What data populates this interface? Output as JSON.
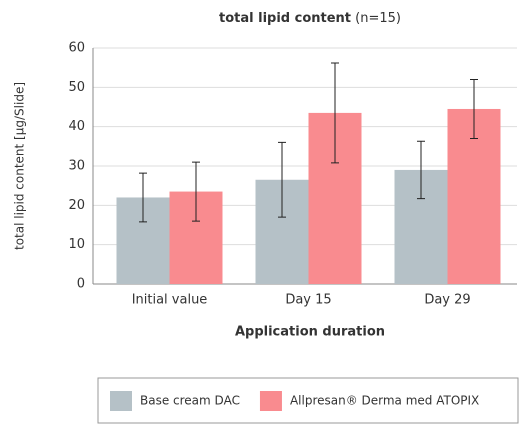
{
  "chart_data": {
    "type": "bar",
    "title": "total lipid content",
    "title_note": "(n=15)",
    "xlabel": "Application duration",
    "ylabel": "total lipid content [µg/Slide]",
    "categories": [
      "Initial value",
      "Day 15",
      "Day 29"
    ],
    "series": [
      {
        "name": "Base cream DAC",
        "color": "#b5c1c7",
        "values": [
          22,
          26.5,
          29
        ],
        "errors": [
          6.2,
          9.5,
          7.3
        ]
      },
      {
        "name": "Allpresan® Derma med ATOPIX",
        "color": "#f98b8f",
        "values": [
          23.5,
          43.5,
          44.5
        ],
        "errors": [
          7.5,
          12.7,
          7.5
        ]
      }
    ],
    "ylim": [
      0,
      60
    ],
    "yticks": [
      0,
      10,
      20,
      30,
      40,
      50,
      60
    ],
    "grid": true
  }
}
